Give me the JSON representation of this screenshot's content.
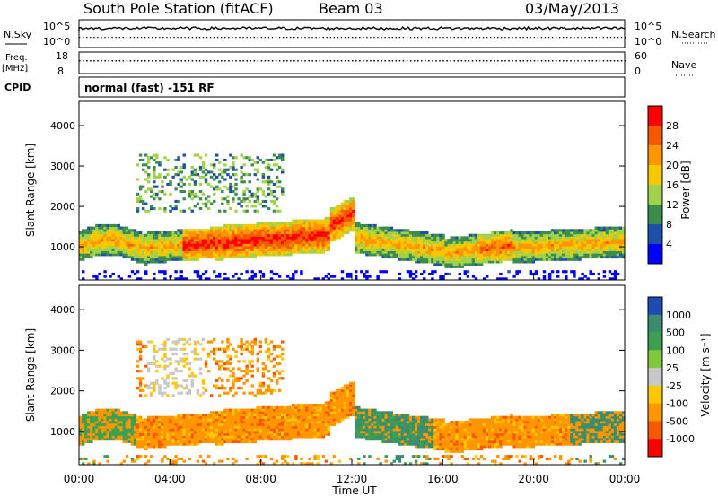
{
  "header": {
    "station": "South Pole Station (fitACF)",
    "beam": "Beam 03",
    "date": "03/May/2013"
  },
  "params": {
    "nsky_label": "N.Sky",
    "nsky_ticks": [
      "10^5",
      "10^0"
    ],
    "nsearch_label": "N.Search",
    "freq_label": "Freq.",
    "freq_unit": "[MHz]",
    "freq_ticks": [
      "18",
      "8"
    ],
    "nave_label": "Nave",
    "nave_ticks": [
      "60",
      "0"
    ],
    "cpid_label": "CPID",
    "mode_text": "normal (fast) -151 RF"
  },
  "axes": {
    "ylabel": "Slant Range [km]",
    "xlabel": "Time UT",
    "y_ticks": [
      "1000",
      "2000",
      "3000",
      "4000"
    ],
    "x_ticks": [
      "00:00",
      "04:00",
      "08:00",
      "12:00",
      "16:00",
      "20:00",
      "00:00"
    ]
  },
  "colorbars": {
    "power": {
      "label": "Power [dB]",
      "ticks": [
        "4",
        "8",
        "12",
        "16",
        "20",
        "24",
        "28"
      ],
      "colors": [
        "#0000ff",
        "#1e50aa",
        "#3c8c50",
        "#a0d24b",
        "#f5c800",
        "#ff9600",
        "#f55a00",
        "#ff0000"
      ]
    },
    "velocity": {
      "label": "Velocity [m s⁻¹]",
      "ticks": [
        "1000",
        "500",
        "100",
        "25",
        "-25",
        "-100",
        "-500",
        "-1000"
      ],
      "colors": [
        "#1e4bb4",
        "#3c8c6e",
        "#3ca050",
        "#82c83c",
        "#c8c8c8",
        "#ffc800",
        "#ff9600",
        "#f55a00",
        "#ff0000"
      ]
    }
  },
  "chart_data": [
    {
      "type": "heatmap",
      "name_hint": "power",
      "xlabel": "Time UT",
      "ylabel": "Slant Range [km]",
      "xlim": [
        0,
        24
      ],
      "ylim": [
        180,
        4600
      ],
      "colorbar_label": "Power [dB]",
      "description_points": [
        {
          "t": 0.5,
          "r": 1000,
          "v": 16
        },
        {
          "t": 2.0,
          "r": 1300,
          "v": 12
        },
        {
          "t": 4.0,
          "r": 1050,
          "v": 20
        },
        {
          "t": 6.0,
          "r": 950,
          "v": 28
        },
        {
          "t": 8.0,
          "r": 1050,
          "v": 28
        },
        {
          "t": 10.0,
          "r": 1300,
          "v": 24
        },
        {
          "t": 11.5,
          "r": 1700,
          "v": 24
        },
        {
          "t": 13.0,
          "r": 1150,
          "v": 20
        },
        {
          "t": 14.5,
          "r": 1100,
          "v": 24
        },
        {
          "t": 17.0,
          "r": 800,
          "v": 16
        },
        {
          "t": 18.5,
          "r": 1100,
          "v": 24
        },
        {
          "t": 21.0,
          "r": 900,
          "v": 16
        },
        {
          "t": 23.0,
          "r": 1100,
          "v": 20
        }
      ]
    },
    {
      "type": "heatmap",
      "name_hint": "velocity",
      "xlabel": "Time UT",
      "ylabel": "Slant Range [km]",
      "xlim": [
        0,
        24
      ],
      "ylim": [
        180,
        4600
      ],
      "colorbar_label": "Velocity [m s⁻¹]",
      "description_points": [
        {
          "t": 0.5,
          "r": 1000,
          "v": -100
        },
        {
          "t": 2.0,
          "r": 1200,
          "v": 100
        },
        {
          "t": 4.5,
          "r": 1150,
          "v": -100
        },
        {
          "t": 4.5,
          "r": 2200,
          "v": 0
        },
        {
          "t": 8.0,
          "r": 1200,
          "v": -100
        },
        {
          "t": 11.5,
          "r": 1700,
          "v": -500
        },
        {
          "t": 13.5,
          "r": 1100,
          "v": 100
        },
        {
          "t": 17.0,
          "r": 800,
          "v": -100
        },
        {
          "t": 21.0,
          "r": 900,
          "v": -100
        },
        {
          "t": 23.0,
          "r": 1100,
          "v": 100
        }
      ]
    }
  ]
}
